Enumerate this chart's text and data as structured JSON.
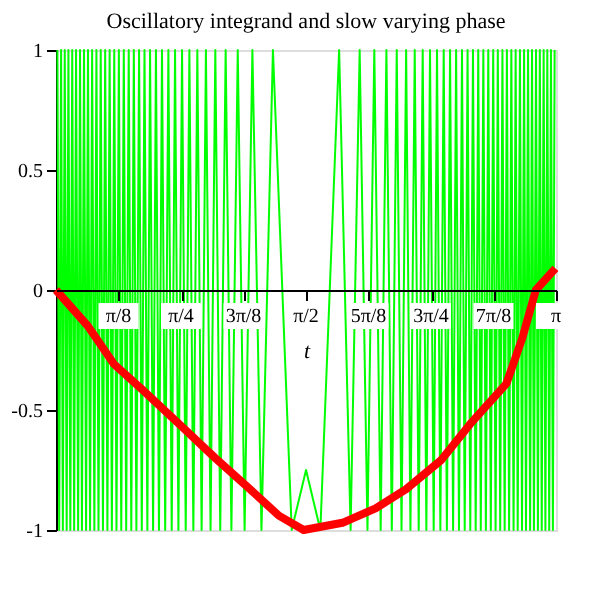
{
  "chart_data": {
    "type": "line",
    "title": "Oscillatory integrand  and  slow  varying phase",
    "xlabel": "t",
    "xlim": [
      0,
      3.1416
    ],
    "ylim": [
      -1,
      1
    ],
    "xticks": [
      {
        "value": 0.3927,
        "label": "π/8"
      },
      {
        "value": 0.7854,
        "label": "π/4"
      },
      {
        "value": 1.1781,
        "label": "3π/8"
      },
      {
        "value": 1.5708,
        "label": "π/2"
      },
      {
        "value": 1.9635,
        "label": "5π/8"
      },
      {
        "value": 2.3562,
        "label": "3π/4"
      },
      {
        "value": 2.7489,
        "label": "7π/8"
      },
      {
        "value": 3.1416,
        "label": "π"
      }
    ],
    "yticks": [
      -1,
      -0.5,
      0,
      0.5,
      1
    ],
    "grid": false,
    "legend": false,
    "marker": "none",
    "series": [
      {
        "color": "#00ff00",
        "x": [
          0.009,
          0.02,
          0.032,
          0.043,
          0.055,
          0.067,
          0.078,
          0.09,
          0.102,
          0.114,
          0.126,
          0.139,
          0.151,
          0.163,
          0.176,
          0.189,
          0.201,
          0.214,
          0.227,
          0.241,
          0.254,
          0.267,
          0.281,
          0.295,
          0.309,
          0.323,
          0.337,
          0.351,
          0.366,
          0.38,
          0.395,
          0.41,
          0.426,
          0.441,
          0.457,
          0.473,
          0.489,
          0.505,
          0.522,
          0.539,
          0.556,
          0.574,
          0.591,
          0.61,
          0.628,
          0.647,
          0.666,
          0.686,
          0.706,
          0.727,
          0.748,
          0.769,
          0.792,
          0.815,
          0.838,
          0.863,
          0.888,
          0.915,
          0.942,
          0.971,
          1.001,
          1.032,
          1.066,
          1.102,
          1.142,
          1.185,
          1.234,
          1.291,
          1.363,
          1.481,
          1.571,
          1.661,
          1.779,
          1.851,
          1.908,
          1.957,
          2.0,
          2.04,
          2.076,
          2.11,
          2.141,
          2.171,
          2.2,
          2.227,
          2.254,
          2.279,
          2.304,
          2.327,
          2.35,
          2.373,
          2.394,
          2.415,
          2.436,
          2.456,
          2.476,
          2.495,
          2.514,
          2.532,
          2.551,
          2.568,
          2.586,
          2.603,
          2.62,
          2.637,
          2.653,
          2.669,
          2.685,
          2.701,
          2.716,
          2.732,
          2.747,
          2.762,
          2.776,
          2.791,
          2.805,
          2.819,
          2.833,
          2.847,
          2.861,
          2.875,
          2.888,
          2.901,
          2.915,
          2.928,
          2.941,
          2.953,
          2.966,
          2.979,
          2.991,
          3.003,
          3.016,
          3.028,
          3.04,
          3.052,
          3.064,
          3.075,
          3.087,
          3.099,
          3.11,
          3.122,
          3.133
        ],
        "values": [
          1,
          -1,
          1,
          -1,
          1,
          -1,
          1,
          -1,
          1,
          -1,
          1,
          -1,
          1,
          -1,
          1,
          -1,
          1,
          -1,
          1,
          -1,
          1,
          -1,
          1,
          -1,
          1,
          -1,
          1,
          -1,
          1,
          -1,
          1,
          -1,
          1,
          -1,
          1,
          -1,
          1,
          -1,
          1,
          -1,
          1,
          -1,
          1,
          -1,
          1,
          -1,
          1,
          -1,
          1,
          -1,
          1,
          -1,
          1,
          -1,
          1,
          -1,
          1,
          -1,
          1,
          -1,
          1,
          -1,
          1,
          -1,
          1,
          -1,
          1,
          -1,
          1,
          -1,
          -0.75,
          -1,
          1,
          -1,
          1,
          -1,
          1,
          -1,
          1,
          -1,
          1,
          -1,
          1,
          -1,
          1,
          -1,
          1,
          -1,
          1,
          -1,
          1,
          -1,
          1,
          -1,
          1,
          -1,
          1,
          -1,
          1,
          -1,
          1,
          -1,
          1,
          -1,
          1,
          -1,
          1,
          -1,
          1,
          -1,
          1,
          -1,
          1,
          -1,
          1,
          -1,
          1,
          -1,
          1,
          -1,
          1,
          -1,
          1,
          -1,
          1,
          -1,
          1,
          -1,
          1,
          -1,
          1,
          -1,
          1,
          -1,
          1,
          -1,
          1,
          -1,
          1,
          -1,
          1
        ]
      },
      {
        "color": "#ff0000",
        "x": [
          0,
          0.2,
          0.366,
          0.55,
          0.776,
          1.0,
          1.186,
          1.4,
          1.556,
          1.8,
          2.008,
          2.2,
          2.418,
          2.6,
          2.83,
          2.93,
          3.015,
          3.138
        ],
        "values": [
          0,
          -0.15,
          -0.31,
          -0.42,
          -0.56,
          -0.7,
          -0.81,
          -0.94,
          -1.0,
          -0.97,
          -0.91,
          -0.83,
          -0.71,
          -0.56,
          -0.39,
          -0.2,
          0,
          0.09
        ]
      }
    ]
  }
}
